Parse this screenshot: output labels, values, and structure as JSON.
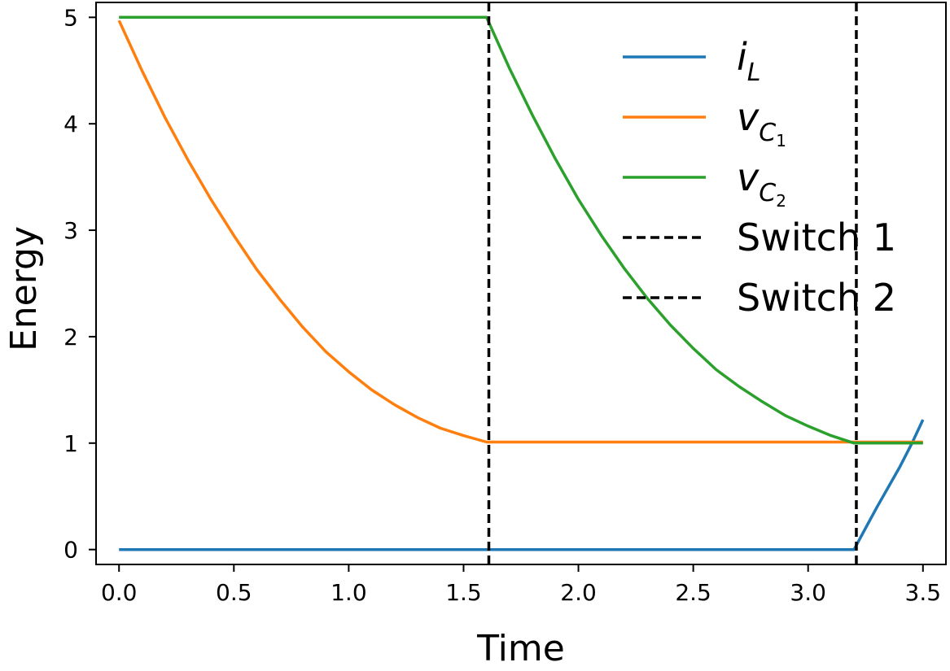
{
  "chart_data": {
    "type": "line",
    "xlabel": "Time",
    "ylabel": "Energy",
    "xlim": [
      -0.1,
      3.6
    ],
    "ylim": [
      -0.14,
      5.14
    ],
    "xticks": [
      0.0,
      0.5,
      1.0,
      1.5,
      2.0,
      2.5,
      3.0,
      3.5
    ],
    "xtick_labels": [
      "0.0",
      "0.5",
      "1.0",
      "1.5",
      "2.0",
      "2.5",
      "3.0",
      "3.5"
    ],
    "yticks": [
      0,
      1,
      2,
      3,
      4,
      5
    ],
    "ytick_labels": [
      "0",
      "1",
      "2",
      "3",
      "4",
      "5"
    ],
    "grid": false,
    "legend_position": "top-right",
    "series": [
      {
        "name": "i_L",
        "label_base": "i",
        "label_sub": "L",
        "color": "#1f77b4",
        "x": [
          0.0,
          3.2,
          3.25,
          3.3,
          3.35,
          3.4,
          3.45,
          3.5
        ],
        "y": [
          0.0,
          0.0,
          0.2,
          0.4,
          0.59,
          0.78,
          0.99,
          1.22
        ]
      },
      {
        "name": "v_C1",
        "label_base": "v",
        "label_sub": "C",
        "label_subsub": "1",
        "color": "#ff7f0e",
        "x": [
          0.0,
          0.1,
          0.2,
          0.3,
          0.4,
          0.5,
          0.6,
          0.7,
          0.8,
          0.9,
          1.0,
          1.1,
          1.2,
          1.3,
          1.4,
          1.5,
          1.6,
          2.0,
          2.5,
          3.0,
          3.5
        ],
        "y": [
          4.97,
          4.5,
          4.06,
          3.66,
          3.29,
          2.95,
          2.63,
          2.35,
          2.09,
          1.86,
          1.67,
          1.5,
          1.36,
          1.24,
          1.14,
          1.07,
          1.01,
          1.01,
          1.01,
          1.01,
          1.01
        ]
      },
      {
        "name": "v_C2",
        "label_base": "v",
        "label_sub": "C",
        "label_subsub": "2",
        "color": "#2ca02c",
        "x": [
          0.0,
          1.6,
          1.7,
          1.8,
          1.9,
          2.0,
          2.1,
          2.2,
          2.3,
          2.4,
          2.5,
          2.6,
          2.7,
          2.8,
          2.9,
          3.0,
          3.1,
          3.2,
          3.3,
          3.4,
          3.5
        ],
        "y": [
          5.0,
          5.0,
          4.52,
          4.08,
          3.67,
          3.29,
          2.95,
          2.64,
          2.36,
          2.11,
          1.89,
          1.69,
          1.53,
          1.39,
          1.26,
          1.16,
          1.07,
          1.0,
          1.0,
          1.0,
          1.0
        ]
      }
    ],
    "vlines": [
      {
        "name": "Switch 1",
        "x": 1.61,
        "color": "#000000",
        "style": "dashed"
      },
      {
        "name": "Switch 2",
        "x": 3.21,
        "color": "#000000",
        "style": "dashed"
      }
    ]
  }
}
